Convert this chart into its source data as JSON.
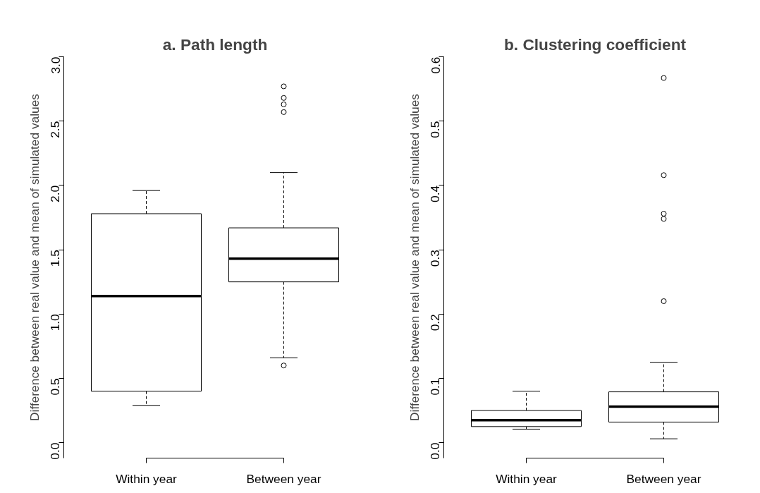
{
  "chart_data": [
    {
      "type": "box",
      "title": "a. Path length",
      "ylabel": "Difference between real value and mean of simulated values",
      "categories": [
        "Within year",
        "Between year"
      ],
      "boxes": [
        {
          "low": 0.29,
          "q1": 0.4,
          "median": 1.14,
          "q3": 1.78,
          "high": 1.96
        },
        {
          "low": 0.66,
          "q1": 1.25,
          "median": 1.43,
          "q3": 1.67,
          "high": 2.1,
          "outliers": [
            2.77,
            2.68,
            2.63,
            2.57,
            0.6
          ]
        }
      ],
      "ylim": [
        -0.12,
        3.0
      ],
      "yticks": [
        {
          "value": 0,
          "label": "0.0"
        },
        0.5,
        {
          "value": 1,
          "label": "1.0"
        },
        1.5,
        {
          "value": 2,
          "label": "2.0"
        },
        2.5,
        {
          "value": 3,
          "label": "3.0"
        }
      ],
      "grid": false
    },
    {
      "type": "box",
      "title": "b. Clustering coefficient",
      "ylabel": "Difference between real value and mean of simulated values",
      "categories": [
        "Within year",
        "Between year"
      ],
      "boxes": [
        {
          "low": 0.021,
          "q1": 0.025,
          "median": 0.035,
          "q3": 0.05,
          "high": 0.08
        },
        {
          "low": 0.006,
          "q1": 0.032,
          "median": 0.056,
          "q3": 0.079,
          "high": 0.125,
          "outliers": [
            0.567,
            0.416,
            0.356,
            0.348,
            0.22
          ]
        }
      ],
      "ylim": [
        -0.024,
        0.6
      ],
      "yticks": [
        {
          "value": 0,
          "label": "0.0"
        },
        0.1,
        0.2,
        0.3,
        0.4,
        0.5,
        0.6
      ],
      "grid": false
    }
  ]
}
